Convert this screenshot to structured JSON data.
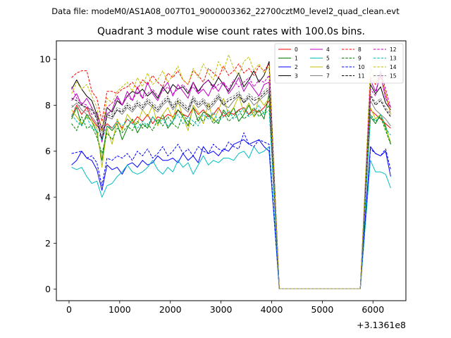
{
  "header": {
    "suptitle": "Data file: modeM0/AS1A08_007T01_9000003362_22700cztM0_level2_quad_clean.evt"
  },
  "chart_data": {
    "type": "line",
    "title": "Quadrant 3 module wise count rates with 100.0s bins.",
    "xlabel": "",
    "ylabel": "",
    "x_offset_label": "+3.1361e8",
    "xlim": [
      -250,
      6650
    ],
    "ylim": [
      -0.5,
      10.8
    ],
    "xticks": [
      0,
      1000,
      2000,
      3000,
      4000,
      5000,
      6000
    ],
    "yticks": [
      0,
      2,
      4,
      6,
      8,
      10
    ],
    "grid": false,
    "legend": {
      "placement": "top-right",
      "columns": 4
    },
    "x": [
      50,
      150,
      250,
      350,
      450,
      550,
      650,
      750,
      850,
      950,
      1050,
      1150,
      1250,
      1350,
      1450,
      1550,
      1650,
      1750,
      1850,
      1950,
      2050,
      2150,
      2250,
      2350,
      2450,
      2550,
      2650,
      2750,
      2850,
      2950,
      3050,
      3150,
      3250,
      3350,
      3450,
      3550,
      3650,
      3750,
      3850,
      3950,
      4150,
      4250,
      4350,
      4450,
      4550,
      4650,
      4750,
      4850,
      4950,
      5050,
      5150,
      5250,
      5350,
      5450,
      5550,
      5650,
      5750,
      5950,
      6050,
      6150,
      6250,
      6350
    ],
    "series": [
      {
        "name": "0",
        "color": "#ff0000",
        "dash": "solid",
        "values": [
          7.5,
          8.0,
          7.6,
          7.9,
          7.4,
          7.1,
          6.9,
          7.2,
          7.0,
          7.3,
          7.0,
          7.4,
          7.2,
          7.5,
          7.3,
          7.6,
          7.2,
          7.5,
          7.4,
          7.6,
          7.5,
          7.8,
          7.6,
          7.5,
          7.9,
          7.6,
          7.8,
          7.5,
          7.6,
          7.9,
          7.5,
          7.7,
          7.6,
          7.8,
          7.9,
          7.6,
          7.8,
          7.7,
          7.9,
          8.2,
          0.02,
          0.02,
          0.02,
          0.02,
          0.02,
          0.02,
          0.02,
          0.02,
          0.02,
          0.02,
          0.02,
          0.02,
          0.02,
          0.02,
          0.02,
          0.02,
          0.02,
          7.8,
          7.6,
          7.4,
          7.2,
          7.0
        ]
      },
      {
        "name": "1",
        "color": "#008000",
        "dash": "solid",
        "values": [
          7.4,
          7.9,
          7.1,
          7.6,
          7.3,
          6.8,
          5.6,
          7.1,
          6.9,
          7.2,
          6.5,
          7.0,
          7.4,
          6.8,
          7.2,
          7.0,
          7.5,
          7.2,
          7.6,
          7.0,
          7.3,
          7.8,
          7.5,
          7.1,
          7.9,
          7.3,
          7.7,
          7.6,
          7.4,
          7.2,
          7.8,
          7.5,
          7.9,
          7.3,
          7.6,
          8.0,
          7.5,
          7.8,
          7.4,
          8.5,
          0.02,
          0.02,
          0.02,
          0.02,
          0.02,
          0.02,
          0.02,
          0.02,
          0.02,
          0.02,
          0.02,
          0.02,
          0.02,
          0.02,
          0.02,
          0.02,
          0.02,
          7.5,
          7.2,
          7.6,
          7.1,
          6.3
        ]
      },
      {
        "name": "2",
        "color": "#0000ff",
        "dash": "solid",
        "values": [
          5.4,
          5.6,
          6.0,
          5.7,
          5.6,
          5.2,
          4.3,
          5.4,
          5.2,
          5.3,
          5.0,
          5.4,
          5.5,
          5.3,
          5.6,
          5.4,
          5.5,
          5.8,
          5.6,
          5.6,
          5.7,
          5.5,
          5.9,
          5.6,
          5.8,
          5.5,
          6.2,
          5.9,
          6.0,
          5.8,
          6.1,
          6.0,
          6.3,
          6.4,
          6.5,
          6.3,
          6.4,
          6.5,
          6.2,
          6.0,
          0.02,
          0.02,
          0.02,
          0.02,
          0.02,
          0.02,
          0.02,
          0.02,
          0.02,
          0.02,
          0.02,
          0.02,
          0.02,
          0.02,
          0.02,
          0.02,
          0.02,
          6.2,
          5.9,
          5.8,
          6.0,
          4.9
        ]
      },
      {
        "name": "3",
        "color": "#000000",
        "dash": "solid",
        "values": [
          8.7,
          9.1,
          8.7,
          8.4,
          8.2,
          7.6,
          7.0,
          7.9,
          7.7,
          8.2,
          8.0,
          8.4,
          8.6,
          8.5,
          8.7,
          8.4,
          8.6,
          8.3,
          8.8,
          8.5,
          8.9,
          8.7,
          8.8,
          8.5,
          9.0,
          8.6,
          8.9,
          9.1,
          8.8,
          9.2,
          8.9,
          8.6,
          9.0,
          9.4,
          8.8,
          9.1,
          9.5,
          9.0,
          9.3,
          9.9,
          0.02,
          0.02,
          0.02,
          0.02,
          0.02,
          0.02,
          0.02,
          0.02,
          0.02,
          0.02,
          0.02,
          0.02,
          0.02,
          0.02,
          0.02,
          0.02,
          0.02,
          8.9,
          8.5,
          8.8,
          8.1,
          7.8
        ]
      },
      {
        "name": "4",
        "color": "#bf00bf",
        "dash": "solid",
        "values": [
          8.2,
          8.5,
          8.0,
          8.3,
          7.9,
          7.5,
          6.4,
          7.6,
          7.8,
          8.4,
          8.0,
          8.6,
          8.2,
          8.8,
          8.3,
          9.0,
          8.5,
          8.2,
          8.7,
          9.0,
          8.4,
          8.9,
          8.6,
          8.3,
          9.0,
          8.5,
          8.7,
          8.4,
          8.9,
          8.6,
          9.0,
          8.5,
          8.8,
          9.2,
          8.6,
          9.0,
          8.7,
          8.4,
          8.9,
          9.0,
          0.02,
          0.02,
          0.02,
          0.02,
          0.02,
          0.02,
          0.02,
          0.02,
          0.02,
          0.02,
          0.02,
          0.02,
          0.02,
          0.02,
          0.02,
          0.02,
          0.02,
          9.1,
          8.6,
          9.3,
          8.3,
          7.9
        ]
      },
      {
        "name": "5",
        "color": "#00bfbf",
        "dash": "solid",
        "values": [
          5.3,
          5.2,
          5.3,
          4.9,
          4.6,
          4.7,
          4.0,
          4.5,
          4.6,
          4.9,
          5.1,
          5.4,
          5.1,
          5.0,
          5.1,
          5.3,
          5.6,
          5.2,
          5.0,
          5.3,
          5.1,
          5.6,
          5.3,
          5.5,
          5.0,
          5.4,
          5.8,
          5.4,
          5.6,
          5.5,
          5.7,
          5.7,
          5.6,
          5.9,
          6.0,
          5.7,
          6.2,
          5.9,
          6.0,
          6.2,
          0.02,
          0.02,
          0.02,
          0.02,
          0.02,
          0.02,
          0.02,
          0.02,
          0.02,
          0.02,
          0.02,
          0.02,
          0.02,
          0.02,
          0.02,
          0.02,
          0.02,
          5.6,
          5.1,
          5.1,
          5.0,
          4.4
        ]
      },
      {
        "name": "6",
        "color": "#bfbf00",
        "dash": "solid",
        "values": [
          7.8,
          7.5,
          7.2,
          7.5,
          7.3,
          7.0,
          5.3,
          7.0,
          6.3,
          7.4,
          6.9,
          7.6,
          7.3,
          7.2,
          7.8,
          7.5,
          8.0,
          7.1,
          7.6,
          7.9,
          7.4,
          8.2,
          7.5,
          6.9,
          8.0,
          7.7,
          7.2,
          8.1,
          7.3,
          7.8,
          8.3,
          7.6,
          7.9,
          8.4,
          7.7,
          8.1,
          7.5,
          8.3,
          8.0,
          8.3,
          0.02,
          0.02,
          0.02,
          0.02,
          0.02,
          0.02,
          0.02,
          0.02,
          0.02,
          0.02,
          0.02,
          0.02,
          0.02,
          0.02,
          0.02,
          0.02,
          0.02,
          7.9,
          7.4,
          7.6,
          7.0,
          6.4
        ]
      },
      {
        "name": "7",
        "color": "#808080",
        "dash": "solid",
        "values": [
          7.9,
          8.1,
          7.8,
          7.6,
          7.5,
          7.2,
          6.6,
          7.5,
          7.4,
          7.8,
          7.6,
          7.9,
          7.7,
          8.0,
          7.8,
          8.1,
          7.9,
          7.7,
          8.0,
          8.2,
          7.8,
          8.1,
          7.9,
          7.7,
          8.2,
          7.9,
          8.1,
          7.8,
          8.0,
          8.3,
          8.0,
          7.9,
          8.2,
          8.4,
          8.1,
          8.3,
          8.0,
          8.2,
          8.4,
          8.6,
          0.02,
          0.02,
          0.02,
          0.02,
          0.02,
          0.02,
          0.02,
          0.02,
          0.02,
          0.02,
          0.02,
          0.02,
          0.02,
          0.02,
          0.02,
          0.02,
          0.02,
          8.2,
          7.8,
          7.6,
          7.4,
          7.1
        ]
      },
      {
        "name": "8",
        "color": "#ff0000",
        "dash": "dashed",
        "values": [
          9.2,
          9.4,
          9.5,
          9.5,
          8.6,
          8.3,
          7.3,
          8.6,
          8.6,
          8.5,
          8.7,
          8.8,
          9.0,
          8.7,
          9.1,
          8.9,
          9.3,
          9.0,
          8.8,
          9.4,
          9.2,
          9.5,
          9.1,
          8.9,
          9.5,
          9.3,
          9.0,
          9.6,
          9.4,
          9.2,
          9.7,
          9.3,
          9.5,
          9.8,
          9.4,
          9.6,
          9.3,
          9.7,
          9.5,
          9.8,
          0.02,
          0.02,
          0.02,
          0.02,
          0.02,
          0.02,
          0.02,
          0.02,
          0.02,
          0.02,
          0.02,
          0.02,
          0.02,
          0.02,
          0.02,
          0.02,
          0.02,
          9.2,
          8.9,
          9.4,
          8.5,
          7.6
        ]
      },
      {
        "name": "9",
        "color": "#008000",
        "dash": "dashed",
        "values": [
          7.2,
          6.9,
          7.5,
          7.0,
          7.1,
          6.6,
          5.9,
          6.8,
          6.5,
          7.0,
          6.8,
          7.1,
          6.9,
          7.3,
          7.0,
          7.2,
          6.9,
          7.4,
          7.1,
          7.5,
          7.2,
          7.0,
          7.6,
          7.3,
          7.1,
          7.5,
          7.3,
          7.6,
          7.2,
          7.4,
          7.7,
          7.3,
          7.5,
          7.8,
          7.4,
          7.6,
          7.9,
          7.5,
          7.7,
          8.0,
          0.02,
          0.02,
          0.02,
          0.02,
          0.02,
          0.02,
          0.02,
          0.02,
          0.02,
          0.02,
          0.02,
          0.02,
          0.02,
          0.02,
          0.02,
          0.02,
          0.02,
          7.6,
          7.3,
          7.5,
          6.9,
          6.3
        ]
      },
      {
        "name": "10",
        "color": "#0000ff",
        "dash": "dashed",
        "values": [
          5.9,
          5.95,
          6.0,
          5.7,
          5.8,
          5.5,
          4.5,
          5.7,
          5.6,
          5.8,
          5.7,
          5.9,
          5.6,
          6.0,
          5.8,
          6.1,
          5.7,
          5.9,
          6.2,
          5.8,
          6.0,
          6.3,
          5.9,
          6.1,
          5.8,
          6.2,
          6.0,
          5.9,
          6.3,
          6.1,
          6.0,
          6.4,
          6.2,
          6.1,
          6.8,
          6.3,
          6.2,
          6.5,
          6.4,
          6.3,
          0.02,
          0.02,
          0.02,
          0.02,
          0.02,
          0.02,
          0.02,
          0.02,
          0.02,
          0.02,
          0.02,
          0.02,
          0.02,
          0.02,
          0.02,
          0.02,
          0.02,
          6.1,
          5.9,
          5.8,
          6.1,
          5.2
        ]
      },
      {
        "name": "11",
        "color": "#000000",
        "dash": "dashed",
        "values": [
          8.3,
          8.2,
          8.0,
          7.9,
          7.8,
          7.4,
          6.5,
          7.6,
          7.5,
          7.8,
          7.7,
          8.0,
          7.8,
          8.1,
          7.9,
          8.2,
          8.0,
          7.8,
          8.1,
          8.3,
          7.9,
          8.2,
          8.0,
          7.8,
          8.3,
          8.0,
          8.2,
          7.9,
          8.1,
          8.4,
          8.0,
          8.2,
          8.3,
          8.5,
          8.1,
          8.4,
          8.2,
          8.3,
          8.5,
          8.7,
          0.02,
          0.02,
          0.02,
          0.02,
          0.02,
          0.02,
          0.02,
          0.02,
          0.02,
          0.02,
          0.02,
          0.02,
          0.02,
          0.02,
          0.02,
          0.02,
          0.02,
          8.4,
          8.0,
          8.2,
          7.8,
          7.5
        ]
      },
      {
        "name": "12",
        "color": "#bf00bf",
        "dash": "dashed",
        "values": [
          8.8,
          8.3,
          8.1,
          8.0,
          7.6,
          7.7,
          6.9,
          7.9,
          8.1,
          8.3,
          8.0,
          8.4,
          8.2,
          8.6,
          8.3,
          8.5,
          8.7,
          8.4,
          8.6,
          8.8,
          8.5,
          8.7,
          8.9,
          8.6,
          8.8,
          8.5,
          8.9,
          9.1,
          8.7,
          8.9,
          9.0,
          8.7,
          9.1,
          8.8,
          9.0,
          9.2,
          8.8,
          9.1,
          9.0,
          9.3,
          0.02,
          0.02,
          0.02,
          0.02,
          0.02,
          0.02,
          0.02,
          0.02,
          0.02,
          0.02,
          0.02,
          0.02,
          0.02,
          0.02,
          0.02,
          0.02,
          0.02,
          8.7,
          8.4,
          9.5,
          8.7,
          7.9
        ]
      },
      {
        "name": "13",
        "color": "#00bfbf",
        "dash": "dashed",
        "values": [
          7.6,
          7.3,
          7.1,
          7.5,
          7.0,
          6.9,
          6.5,
          7.1,
          7.0,
          7.3,
          7.1,
          7.4,
          7.2,
          7.0,
          7.3,
          7.1,
          7.5,
          7.2,
          7.4,
          7.1,
          7.3,
          7.6,
          7.2,
          7.5,
          7.3,
          7.1,
          7.6,
          7.4,
          7.7,
          7.3,
          7.5,
          7.8,
          7.4,
          7.6,
          7.9,
          7.5,
          7.7,
          8.0,
          7.6,
          7.8,
          0.02,
          0.02,
          0.02,
          0.02,
          0.02,
          0.02,
          0.02,
          0.02,
          0.02,
          0.02,
          0.02,
          0.02,
          0.02,
          0.02,
          0.02,
          0.02,
          0.02,
          7.5,
          7.3,
          7.6,
          7.0,
          6.7
        ]
      },
      {
        "name": "14",
        "color": "#bfbf00",
        "dash": "dashed",
        "values": [
          8.5,
          9.0,
          8.7,
          8.9,
          8.4,
          7.9,
          6.9,
          8.3,
          8.1,
          8.6,
          8.8,
          9.0,
          8.6,
          9.2,
          8.8,
          9.4,
          8.9,
          9.1,
          9.5,
          9.0,
          9.3,
          9.7,
          9.1,
          8.9,
          9.6,
          9.2,
          9.8,
          9.4,
          9.1,
          9.9,
          9.5,
          10.2,
          9.6,
          9.3,
          9.9,
          10.1,
          9.5,
          9.8,
          9.4,
          9.7,
          0.02,
          0.02,
          0.02,
          0.02,
          0.02,
          0.02,
          0.02,
          0.02,
          0.02,
          0.02,
          0.02,
          0.02,
          0.02,
          0.02,
          0.02,
          0.02,
          0.02,
          9.7,
          9.0,
          9.2,
          8.6,
          7.6
        ]
      },
      {
        "name": "15",
        "color": "#808080",
        "dash": "dashed",
        "values": [
          8.0,
          7.8,
          8.1,
          7.7,
          7.9,
          7.5,
          6.8,
          7.7,
          7.6,
          7.9,
          7.8,
          8.1,
          7.9,
          8.2,
          8.0,
          8.3,
          8.1,
          7.9,
          8.2,
          8.4,
          8.0,
          8.3,
          8.1,
          7.9,
          8.4,
          8.1,
          8.3,
          8.0,
          8.2,
          8.5,
          8.1,
          8.3,
          8.4,
          8.6,
          8.2,
          8.5,
          8.3,
          8.4,
          8.6,
          8.8,
          0.02,
          0.02,
          0.02,
          0.02,
          0.02,
          0.02,
          0.02,
          0.02,
          0.02,
          0.02,
          0.02,
          0.02,
          0.02,
          0.02,
          0.02,
          0.02,
          0.02,
          8.5,
          8.1,
          8.3,
          7.9,
          7.6
        ]
      }
    ]
  }
}
